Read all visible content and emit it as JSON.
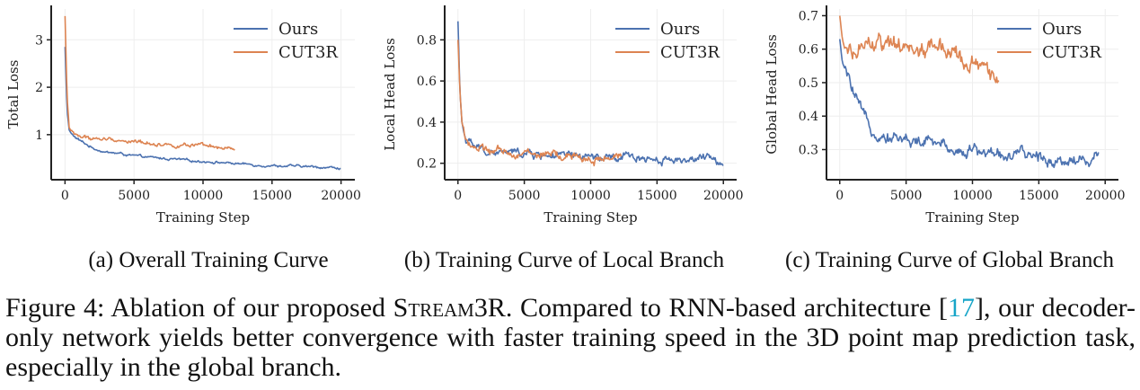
{
  "colors": {
    "ours": "#4c72b0",
    "cut3r": "#dd8452",
    "axis": "#222222",
    "grid": "#eeeeee",
    "ref": "#17a5c8"
  },
  "chart_data": [
    {
      "type": "line",
      "ylabel": "Total Loss",
      "xlabel": "Training Step",
      "xlim": [
        -1000,
        21000
      ],
      "ylim": [
        0.05,
        3.65
      ],
      "xticks": [
        0,
        5000,
        10000,
        15000,
        20000
      ],
      "yticks": [
        1,
        2,
        3
      ],
      "grid": true,
      "legend": "top-right",
      "subcaption": "(a) Overall Training Curve",
      "series": [
        {
          "name": "Ours",
          "x": [
            0,
            150,
            300,
            500,
            800,
            1200,
            2000,
            3000,
            4000,
            5000,
            6000,
            7000,
            8000,
            9000,
            10000,
            11000,
            12000,
            13000,
            14000,
            15000,
            16000,
            17000,
            18000,
            19000,
            20000
          ],
          "y": [
            2.85,
            1.5,
            1.1,
            1.0,
            0.93,
            0.85,
            0.72,
            0.63,
            0.6,
            0.55,
            0.52,
            0.5,
            0.48,
            0.45,
            0.44,
            0.42,
            0.4,
            0.38,
            0.36,
            0.35,
            0.34,
            0.33,
            0.32,
            0.31,
            0.3
          ]
        },
        {
          "name": "CUT3R",
          "x": [
            0,
            150,
            300,
            500,
            800,
            1200,
            2000,
            3000,
            4000,
            5000,
            6000,
            7000,
            8000,
            9000,
            10000,
            11000,
            12300
          ],
          "y": [
            3.5,
            1.8,
            1.15,
            1.05,
            1.0,
            0.95,
            0.92,
            0.9,
            0.88,
            0.85,
            0.83,
            0.8,
            0.78,
            0.77,
            0.75,
            0.72,
            0.68
          ]
        }
      ]
    },
    {
      "type": "line",
      "ylabel": "Local Head Loss",
      "xlabel": "Training Step",
      "xlim": [
        -1000,
        21000
      ],
      "ylim": [
        0.12,
        0.95
      ],
      "xticks": [
        0,
        5000,
        10000,
        15000,
        20000
      ],
      "yticks": [
        0.2,
        0.4,
        0.6,
        0.8
      ],
      "grid": true,
      "legend": "top-right",
      "subcaption": "(b) Training Curve of Local Branch",
      "series": [
        {
          "name": "Ours",
          "x": [
            0,
            150,
            300,
            500,
            800,
            1200,
            2000,
            3000,
            4000,
            5000,
            6000,
            7000,
            8000,
            9000,
            10000,
            11000,
            12000,
            13000,
            14000,
            15000,
            16000,
            17000,
            18000,
            19000,
            20000
          ],
          "y": [
            0.89,
            0.55,
            0.4,
            0.33,
            0.3,
            0.28,
            0.26,
            0.25,
            0.25,
            0.25,
            0.24,
            0.24,
            0.23,
            0.23,
            0.23,
            0.22,
            0.22,
            0.23,
            0.23,
            0.22,
            0.22,
            0.22,
            0.22,
            0.22,
            0.21
          ]
        },
        {
          "name": "CUT3R",
          "x": [
            0,
            150,
            300,
            500,
            800,
            1200,
            2000,
            3000,
            4000,
            5000,
            6000,
            7000,
            8000,
            9000,
            10000,
            11000,
            12300
          ],
          "y": [
            0.8,
            0.55,
            0.4,
            0.34,
            0.3,
            0.28,
            0.26,
            0.25,
            0.25,
            0.25,
            0.24,
            0.24,
            0.23,
            0.23,
            0.22,
            0.22,
            0.22
          ]
        }
      ]
    },
    {
      "type": "line",
      "ylabel": "Global Head Loss",
      "xlabel": "Training Step",
      "xlim": [
        -1000,
        21000
      ],
      "ylim": [
        0.21,
        0.72
      ],
      "xticks": [
        0,
        5000,
        10000,
        15000,
        20000
      ],
      "yticks": [
        0.3,
        0.4,
        0.5,
        0.6,
        0.7
      ],
      "grid": true,
      "legend": "top-right",
      "subcaption": "(c) Training Curve of Global Branch",
      "series": [
        {
          "name": "Ours",
          "x": [
            0,
            200,
            500,
            1000,
            1500,
            2000,
            2500,
            3000,
            4000,
            5000,
            6000,
            7000,
            8000,
            9000,
            10000,
            11000,
            12000,
            13000,
            14000,
            15000,
            16000,
            17000,
            18000,
            19000,
            19500
          ],
          "y": [
            0.63,
            0.56,
            0.53,
            0.47,
            0.42,
            0.38,
            0.36,
            0.35,
            0.34,
            0.33,
            0.32,
            0.32,
            0.31,
            0.3,
            0.3,
            0.29,
            0.29,
            0.28,
            0.28,
            0.28,
            0.27,
            0.27,
            0.27,
            0.27,
            0.28
          ]
        },
        {
          "name": "CUT3R",
          "x": [
            0,
            200,
            500,
            1000,
            2000,
            3000,
            4000,
            5000,
            6000,
            7000,
            8000,
            9000,
            10000,
            11000,
            12000
          ],
          "y": [
            0.7,
            0.63,
            0.58,
            0.59,
            0.61,
            0.62,
            0.6,
            0.6,
            0.6,
            0.61,
            0.6,
            0.57,
            0.56,
            0.53,
            0.52
          ]
        }
      ]
    }
  ],
  "caption": {
    "prefix": "Figure 4: Ablation of our proposed ",
    "method": "Stream3R",
    "middle": ". Compared to RNN-based architecture [",
    "ref": "17",
    "suffix": "], our decoder-only network yields better convergence with faster training speed in the 3D point map prediction task, especially in the global branch."
  }
}
